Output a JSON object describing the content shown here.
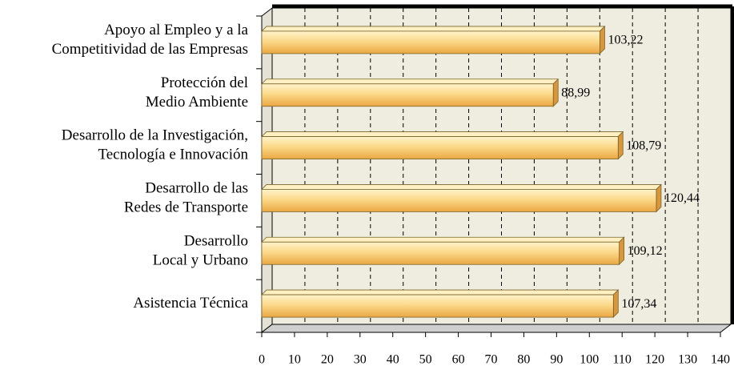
{
  "chart_data": {
    "type": "bar",
    "orientation": "horizontal",
    "categories": [
      "Apoyo al Empleo y a la\nCompetitividad de las Empresas",
      "Protección del\nMedio Ambiente",
      "Desarrollo de la Investigación,\nTecnología e Innovación",
      "Desarrollo de las\nRedes de Transporte",
      "Desarrollo\nLocal y Urbano",
      "Asistencia Técnica"
    ],
    "values": [
      103.22,
      88.99,
      108.79,
      120.44,
      109.12,
      107.34
    ],
    "value_labels": [
      "103,22",
      "88,99",
      "108,79",
      "120,44",
      "109,12",
      "107,34"
    ],
    "color": "#fcd98a",
    "xlim": [
      0,
      140
    ],
    "xticks": [
      0,
      10,
      20,
      30,
      40,
      50,
      60,
      70,
      80,
      90,
      100,
      110,
      120,
      130,
      140
    ],
    "grid": true
  }
}
